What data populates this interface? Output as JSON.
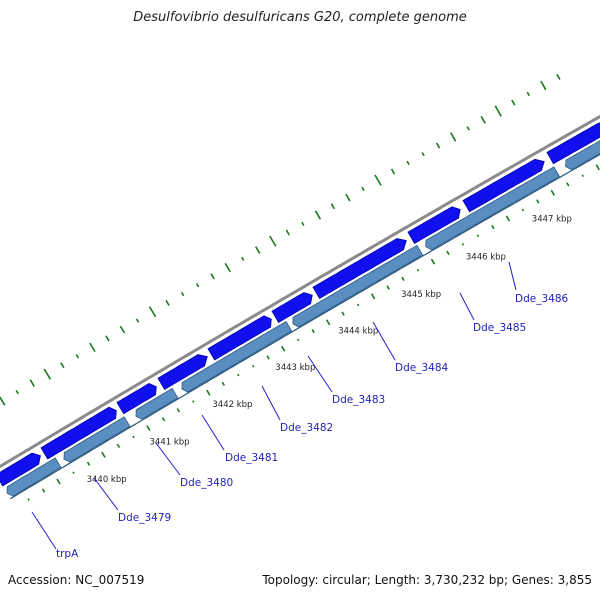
{
  "title": "Desulfovibrio desulfuricans G20, complete genome",
  "accession": "Accession: NC_007519",
  "summary": "Topology: circular; Length: 3,730,232 bp; Genes: 3,855",
  "kbp_labels": [
    "3440 kbp",
    "3441 kbp",
    "3442 kbp",
    "3443 kbp",
    "3444 kbp",
    "3445 kbp",
    "3446 kbp",
    "3447 kbp"
  ],
  "genes": [
    "trpA",
    "Dde_3479",
    "Dde_3480",
    "Dde_3481",
    "Dde_3482",
    "Dde_3483",
    "Dde_3484",
    "Dde_3485",
    "Dde_3486"
  ],
  "colors": {
    "backbone": "#8a8a8a",
    "forward_gene": "#1010ee",
    "reverse_gene": "#5a8ec0",
    "gc_ticks": "#1a7a1a",
    "label_line": "#2222cc",
    "label_text": "#2222bb"
  }
}
